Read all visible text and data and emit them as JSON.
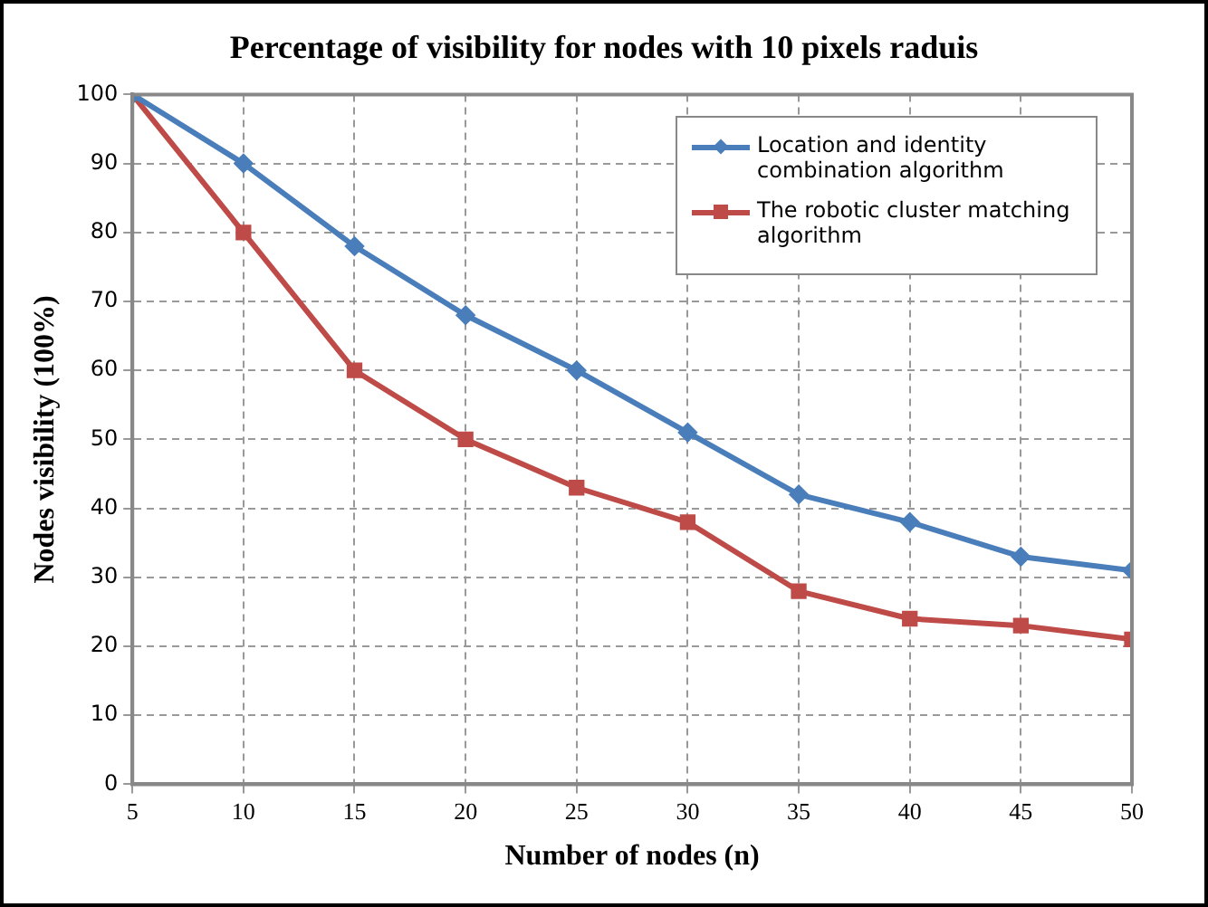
{
  "chart_data": {
    "type": "line",
    "title": "Percentage of visibility for nodes with 10 pixels raduis",
    "xlabel": "Number of nodes (n)",
    "ylabel": "Nodes visibility (100%)",
    "x": [
      5,
      10,
      15,
      20,
      25,
      30,
      35,
      40,
      45,
      50
    ],
    "series": [
      {
        "name": "Location and identity combination algorithm",
        "color": "#4a7ebb",
        "marker": "diamond",
        "values": [
          100,
          90,
          78,
          68,
          60,
          51,
          42,
          38,
          33,
          31
        ]
      },
      {
        "name": "The robotic cluster matching algorithm",
        "color": "#be4b48",
        "marker": "square",
        "values": [
          100,
          80,
          60,
          50,
          43,
          38,
          28,
          24,
          23,
          21
        ]
      }
    ],
    "xlim": [
      5,
      50
    ],
    "xticks": [
      5,
      10,
      15,
      20,
      25,
      30,
      35,
      40,
      45,
      50
    ],
    "ylim": [
      0,
      100
    ],
    "yticks": [
      0,
      10,
      20,
      30,
      40,
      50,
      60,
      70,
      80,
      90,
      100
    ],
    "grid": true,
    "legend": "top right",
    "line_style": "solid"
  }
}
